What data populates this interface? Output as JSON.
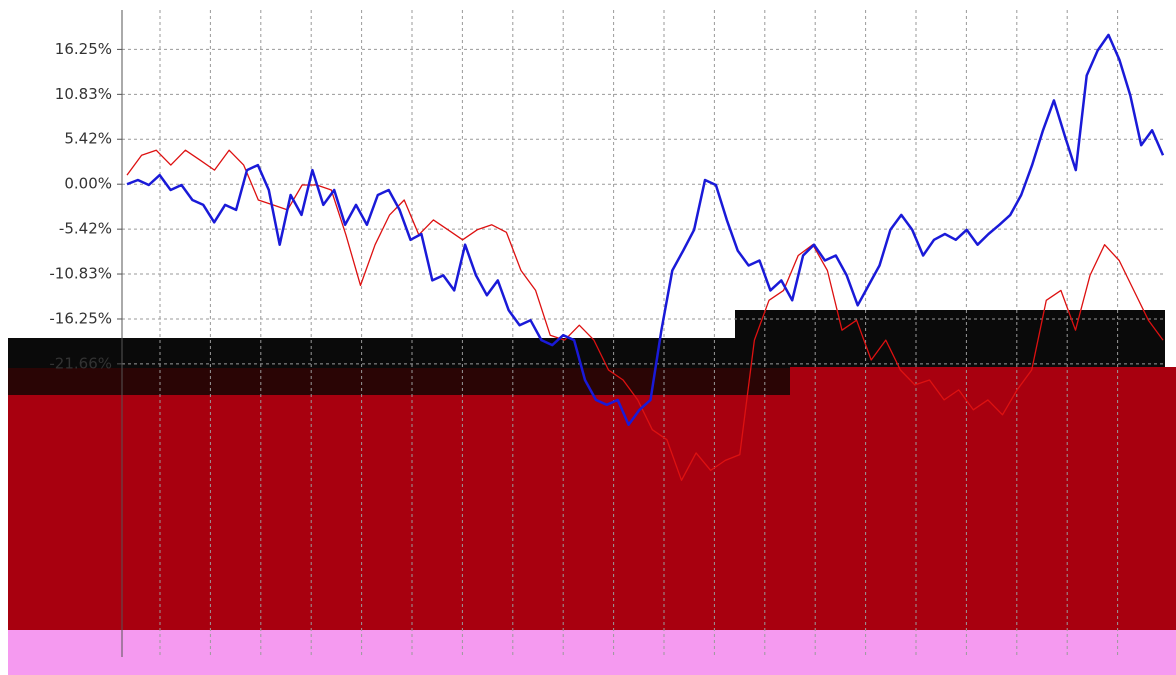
{
  "chart_data": {
    "type": "line",
    "ylim": [
      -57,
      21
    ],
    "yticks": [
      {
        "value": 16.25,
        "label": "16.25%"
      },
      {
        "value": 10.83,
        "label": "10.83%"
      },
      {
        "value": 5.42,
        "label": "5.42%"
      },
      {
        "value": 0,
        "label": "0.00%"
      },
      {
        "value": -5.42,
        "label": "-5.42%"
      },
      {
        "value": -10.83,
        "label": "-10.83%"
      },
      {
        "value": -16.25,
        "label": "-16.25%"
      },
      {
        "value": -21.66,
        "label": "-21.66%"
      }
    ],
    "grid": true,
    "series": [
      {
        "color": "#dd1111",
        "values": [
          1.1,
          3.5,
          4.1,
          2.3,
          4.1,
          2.9,
          1.7,
          4.1,
          2.3,
          -1.9,
          -2.5,
          -3.1,
          -0.1,
          -0.1,
          -0.7,
          -6.1,
          -12.2,
          -7.3,
          -3.7,
          -1.9,
          -6.1,
          -4.3,
          -5.5,
          -6.7,
          -5.5,
          -4.9,
          -5.8,
          -10.4,
          -12.8,
          -18.2,
          -18.8,
          -17.0,
          -18.8,
          -22.4,
          -23.6,
          -26.0,
          -29.6,
          -30.8,
          -35.7,
          -32.4,
          -34.5,
          -33.3,
          -32.6,
          -18.8,
          -14.0,
          -12.8,
          -8.6,
          -7.3,
          -10.4,
          -17.6,
          -16.4,
          -21.2,
          -18.8,
          -22.4,
          -24.2,
          -23.6,
          -26.0,
          -24.8,
          -27.2,
          -26.0,
          -27.8,
          -24.8,
          -22.4,
          -14.0,
          -12.8,
          -17.6,
          -11.0,
          -7.3,
          -9.2,
          -12.8,
          -16.4,
          -18.8
        ]
      },
      {
        "color": "#1a1ad8",
        "values": [
          0,
          0.5,
          -0.1,
          1.1,
          -0.7,
          -0.1,
          -1.9,
          -2.5,
          -4.6,
          -2.5,
          -3.1,
          1.7,
          2.3,
          -0.7,
          -7.3,
          -1.3,
          -3.7,
          1.7,
          -2.5,
          -0.7,
          -4.9,
          -2.5,
          -4.9,
          -1.3,
          -0.7,
          -3.1,
          -6.7,
          -6.0,
          -11.6,
          -11.0,
          -12.8,
          -7.3,
          -11.0,
          -13.4,
          -11.6,
          -15.2,
          -17.0,
          -16.4,
          -18.8,
          -19.4,
          -18.2,
          -18.8,
          -23.6,
          -26.0,
          -26.6,
          -26.0,
          -29.0,
          -27.2,
          -26.0,
          -17.6,
          -10.4,
          -8.0,
          -5.5,
          0.5,
          -0.1,
          -4.3,
          -8.0,
          -9.8,
          -9.2,
          -12.8,
          -11.6,
          -14.0,
          -8.6,
          -7.3,
          -9.2,
          -8.6,
          -11.0,
          -14.6,
          -12.2,
          -9.8,
          -5.5,
          -3.7,
          -5.5,
          -8.6,
          -6.7,
          -6.0,
          -6.7,
          -5.5,
          -7.3,
          -6.0,
          -4.9,
          -3.7,
          -1.3,
          2.3,
          6.5,
          10.1,
          5.8,
          1.7,
          13.1,
          16.1,
          18.0,
          15.0,
          10.7,
          4.7,
          6.5,
          3.5
        ]
      }
    ]
  }
}
